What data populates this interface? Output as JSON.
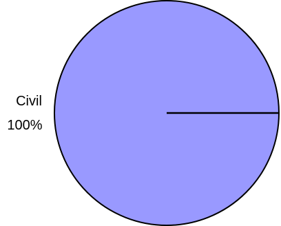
{
  "chart_data": {
    "type": "pie",
    "slices": [
      {
        "label": "Civil",
        "value": 100,
        "percent_label": "100%"
      }
    ],
    "colors": {
      "slice_fill": "#9999ff",
      "outline": "#000000",
      "background": "#ffffff"
    }
  }
}
